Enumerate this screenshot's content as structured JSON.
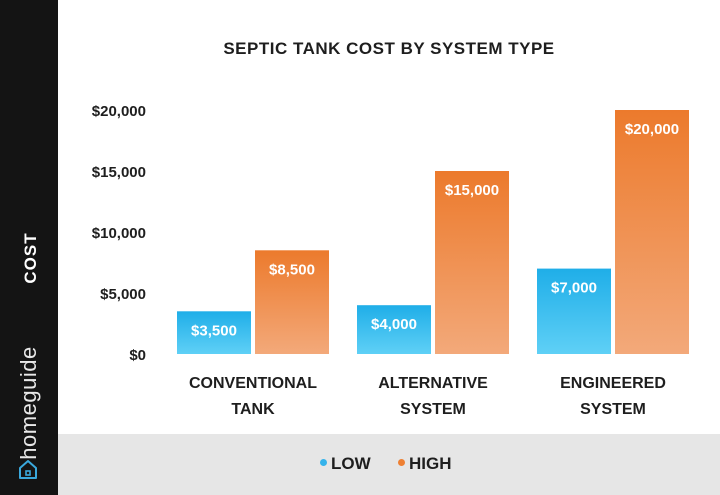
{
  "sidebar": {
    "ylabel": "COST",
    "brand": "homeguide",
    "brand_icon": "house-icon"
  },
  "legend": {
    "items": [
      {
        "label": "LOW",
        "color": "#35b3eb"
      },
      {
        "label": "HIGH",
        "color": "#ee8033"
      }
    ]
  },
  "chart_data": {
    "type": "bar",
    "title": "SEPTIC TANK COST BY SYSTEM TYPE",
    "ylabel": "COST",
    "xlabel": "",
    "categories": [
      [
        "CONVENTIONAL",
        "TANK"
      ],
      [
        "ALTERNATIVE",
        "SYSTEM"
      ],
      [
        "ENGINEERED",
        "SYSTEM"
      ]
    ],
    "series": [
      {
        "name": "LOW",
        "values": [
          3500,
          4000,
          7000
        ],
        "labels": [
          "$3,500",
          "$4,000",
          "$7,000"
        ],
        "color": "#35b3eb"
      },
      {
        "name": "HIGH",
        "values": [
          8500,
          15000,
          20000
        ],
        "labels": [
          "$8,500",
          "$15,000",
          "$20,000"
        ],
        "color": "#ee8033"
      }
    ],
    "yticks": [
      0,
      5000,
      10000,
      15000,
      20000
    ],
    "ytick_labels": [
      "$0",
      "$5,000",
      "$10,000",
      "$15,000",
      "$20,000"
    ],
    "ylim": [
      0,
      20000
    ],
    "grid": false,
    "legend_position": "bottom"
  }
}
